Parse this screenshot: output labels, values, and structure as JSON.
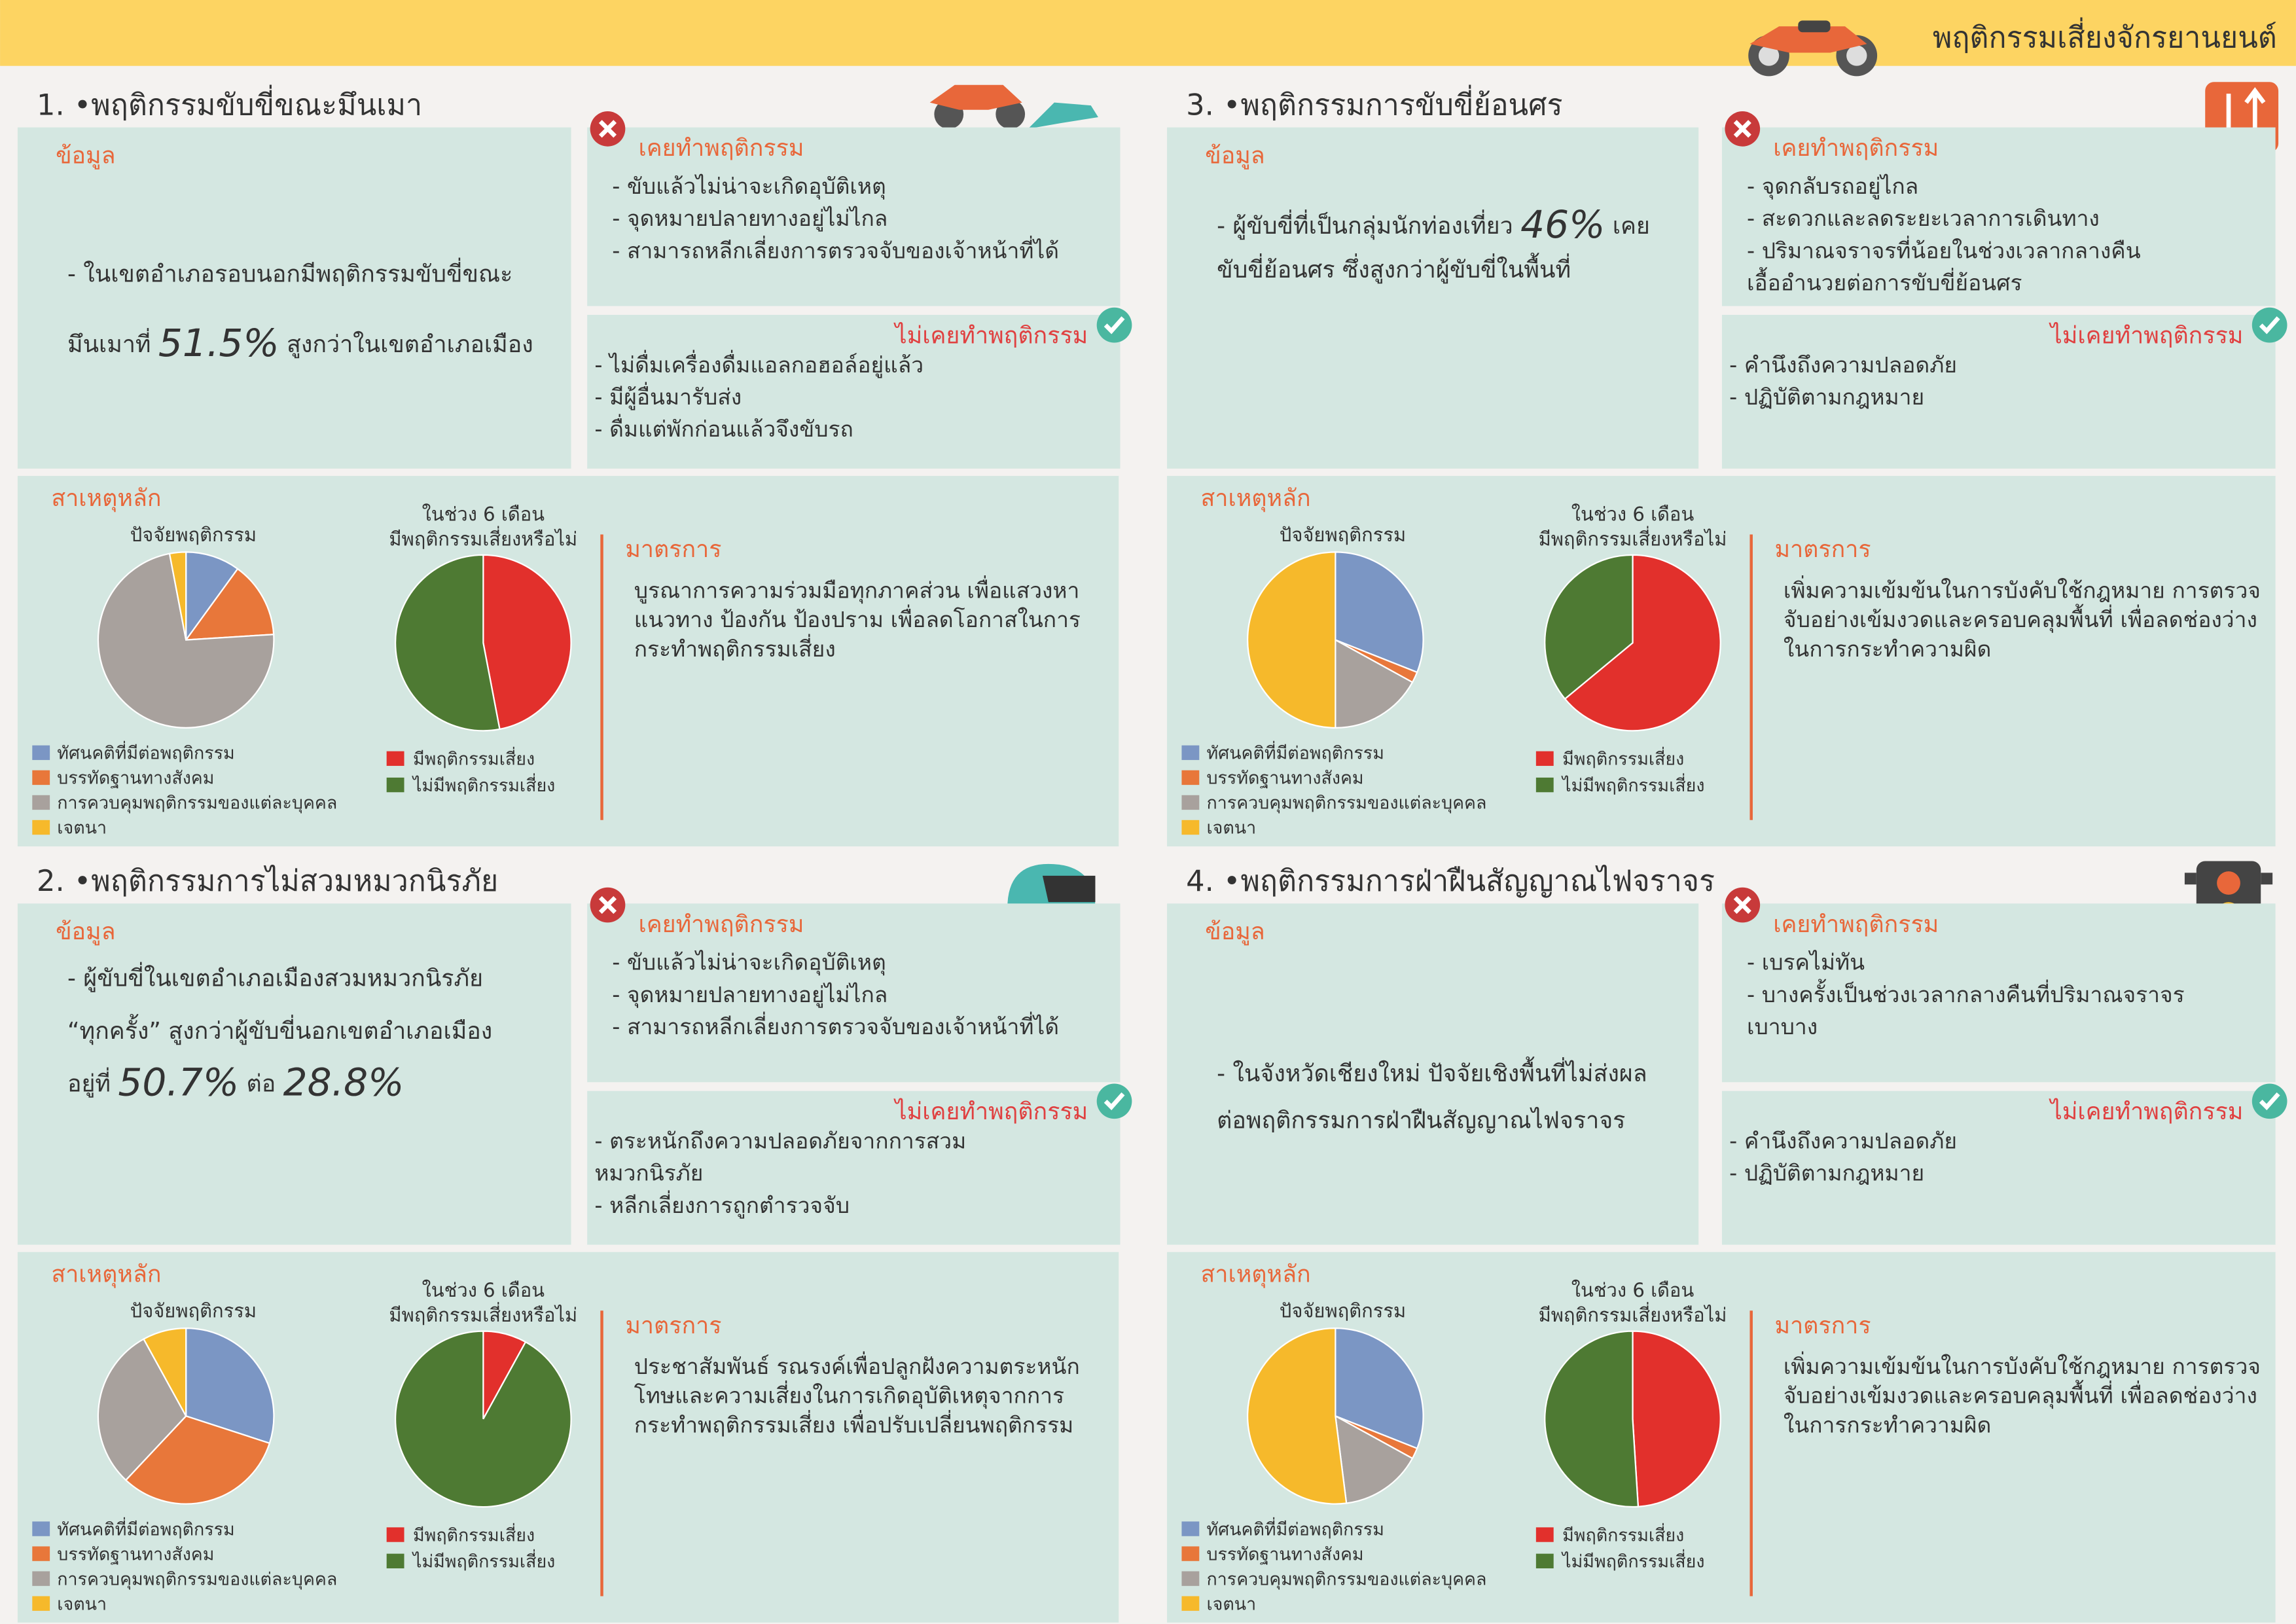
{
  "header": {
    "title": "พฤติกรรมเสี่ยงจักรยานยนต์"
  },
  "sections": [
    {
      "title": "1. •พฤติกรรมขับขี่ขณะมึนเมา",
      "info": {
        "label": "ข้อมูล",
        "lines": [
          [
            "- ในเขตอำเภอรอบนอกมีพฤติกรรมขับขี่ขณะ"
          ],
          [
            "มึนเมาที่ ",
            {
              "text": "51.5%",
              "emphasis": true
            },
            " สูงกว่าในเขตอำเภอเมือง"
          ]
        ]
      },
      "did": {
        "label": "เคยทำพฤติกรรม",
        "items": [
          "- ขับแล้วไม่น่าจะเกิดอุบัติเหตุ",
          "- จุดหมายปลายทางอยู่ไม่ไกล",
          "- สามารถหลีกเลี่ยงการตรวจจับของเจ้าหน้าที่ได้"
        ]
      },
      "not_did": {
        "label": "ไม่เคยทำพฤติกรรม",
        "items": [
          "- ไม่ดื่มเครื่องดื่มแอลกอฮอล์อยู่แล้ว",
          "- มีผู้อื่นมารับส่ง",
          "- ดื่มแต่พักก่อนแล้วจึงขับรถ"
        ]
      },
      "causes_label": "สาเหตุหลัก",
      "factor_chart": {
        "type": "pie",
        "title": "ปัจจัยพฤติกรรม",
        "categories": [
          "ทัศนคติที่มีต่อพฤติกรรม",
          "บรรทัดฐานทางสังคม",
          "การควบคุมพฤติกรรมของแต่ละบุคคล",
          "เจตนา"
        ],
        "values": [
          10,
          14,
          73,
          3
        ],
        "colors": [
          "#7b96c4",
          "#e8773a",
          "#a8a19d",
          "#f6b92b"
        ]
      },
      "risk_chart": {
        "type": "pie",
        "title_lines": [
          "ในช่วง 6 เดือน",
          "มีพฤติกรรมเสี่ยงหรือไม่"
        ],
        "categories": [
          "มีพฤติกรรมเสี่ยง",
          "ไม่มีพฤติกรรมเสี่ยง"
        ],
        "values": [
          47,
          53
        ],
        "colors": [
          "#e2302c",
          "#4e7a33"
        ]
      },
      "measures": {
        "label": "มาตรการ",
        "lines": [
          "บูรณาการความร่วมมือทุกภาคส่วน เพื่อแสวงหา",
          "แนวทาง ป้องกัน ป้องปราม เพื่อลดโอกาสในการ",
          "กระทำพฤติกรรมเสี่ยง"
        ]
      }
    },
    {
      "title": "2. •พฤติกรรมการไม่สวมหมวกนิรภัย",
      "info": {
        "label": "ข้อมูล",
        "lines": [
          [
            "- ผู้ขับขี่ในเขตอำเภอเมืองสวมหมวกนิรภัย"
          ],
          [
            "“ทุกครั้ง”  สูงกว่าผู้ขับขี่นอกเขตอำเภอเมือง"
          ],
          [
            "อยู่ที่ ",
            {
              "text": "50.7%",
              "emphasis": true
            },
            " ต่อ ",
            {
              "text": "28.8%",
              "emphasis": true
            }
          ]
        ]
      },
      "did": {
        "label": "เคยทำพฤติกรรม",
        "items": [
          "- ขับแล้วไม่น่าจะเกิดอุบัติเหตุ",
          "- จุดหมายปลายทางอยู่ไม่ไกล",
          "- สามารถหลีกเลี่ยงการตรวจจับของเจ้าหน้าที่ได้"
        ]
      },
      "not_did": {
        "label": "ไม่เคยทำพฤติกรรม",
        "items": [
          "- ตระหนักถึงความปลอดภัยจากการสวม",
          "  หมวกนิรภัย",
          "- หลีกเลี่ยงการถูกตำรวจจับ"
        ]
      },
      "causes_label": "สาเหตุหลัก",
      "factor_chart": {
        "type": "pie",
        "title": "ปัจจัยพฤติกรรม",
        "categories": [
          "ทัศนคติที่มีต่อพฤติกรรม",
          "บรรทัดฐานทางสังคม",
          "การควบคุมพฤติกรรมของแต่ละบุคคล",
          "เจตนา"
        ],
        "values": [
          30,
          32,
          30,
          8
        ],
        "colors": [
          "#7b96c4",
          "#e8773a",
          "#a8a19d",
          "#f6b92b"
        ]
      },
      "risk_chart": {
        "type": "pie",
        "title_lines": [
          "ในช่วง 6 เดือน",
          "มีพฤติกรรมเสี่ยงหรือไม่"
        ],
        "categories": [
          "มีพฤติกรรมเสี่ยง",
          "ไม่มีพฤติกรรมเสี่ยง"
        ],
        "values": [
          8,
          92
        ],
        "colors": [
          "#e2302c",
          "#4e7a33"
        ]
      },
      "measures": {
        "label": "มาตรการ",
        "lines": [
          "ประชาสัมพันธ์ รณรงค์เพื่อปลูกฝังความตระหนัก",
          "โทษและความเสี่ยงในการเกิดอุบัติเหตุจากการ",
          "กระทำพฤติกรรมเสี่ยง เพื่อปรับเปลี่ยนพฤติกรรม"
        ]
      }
    },
    {
      "title": "3. •พฤติกรรมการขับขี่ย้อนศร",
      "info": {
        "label": "ข้อมูล",
        "lines": [
          [
            "- ผู้ขับขี่ที่เป็นกลุ่มนักท่องเที่ยว ",
            {
              "text": "46%",
              "emphasis": true
            },
            " เคย"
          ],
          [
            "ขับขี่ย้อนศร ซึ่งสูงกว่าผู้ขับขี่ในพื้นที่"
          ]
        ]
      },
      "did": {
        "label": "เคยทำพฤติกรรม",
        "items": [
          "- จุดกลับรถอยู่ไกล",
          "- สะดวกและลดระยะเวลาการเดินทาง",
          "- ปริมาณจราจรที่น้อยในช่วงเวลากลางคืน",
          "เอื้ออำนวยต่อการขับขี่ย้อนศร"
        ]
      },
      "not_did": {
        "label": "ไม่เคยทำพฤติกรรม",
        "items": [
          "- คำนึงถึงความปลอดภัย",
          "- ปฏิบัติตามกฎหมาย"
        ]
      },
      "causes_label": "สาเหตุหลัก",
      "factor_chart": {
        "type": "pie",
        "title": "ปัจจัยพฤติกรรม",
        "categories": [
          "ทัศนคติที่มีต่อพฤติกรรม",
          "บรรทัดฐานทางสังคม",
          "การควบคุมพฤติกรรมของแต่ละบุคคล",
          "เจตนา"
        ],
        "values": [
          31,
          2,
          17,
          50
        ],
        "colors": [
          "#7b96c4",
          "#e8773a",
          "#a8a19d",
          "#f6b92b"
        ]
      },
      "risk_chart": {
        "type": "pie",
        "title_lines": [
          "ในช่วง 6 เดือน",
          "มีพฤติกรรมเสี่ยงหรือไม่"
        ],
        "categories": [
          "มีพฤติกรรมเสี่ยง",
          "ไม่มีพฤติกรรมเสี่ยง"
        ],
        "values": [
          64,
          36
        ],
        "colors": [
          "#e2302c",
          "#4e7a33"
        ]
      },
      "measures": {
        "label": "มาตรการ",
        "lines": [
          "เพิ่มความเข้มข้นในการบังคับใช้กฎหมาย การตรวจ",
          "จับอย่างเข้มงวดและครอบคลุมพื้นที่ เพื่อลดช่องว่าง",
          "ในการกระทำความผิด"
        ]
      }
    },
    {
      "title": "4. •พฤติกรรมการฝ่าฝืนสัญญาณไฟจราจร",
      "info": {
        "label": "ข้อมูล",
        "lines": [
          [
            "- ในจังหวัดเชียงใหม่ ปัจจัยเชิงพื้นที่ไม่ส่งผล"
          ],
          [
            "ต่อพฤติกรรมการฝ่าฝืนสัญญาณไฟจราจร"
          ]
        ]
      },
      "did": {
        "label": "เคยทำพฤติกรรม",
        "items": [
          "- เบรคไม่ทัน",
          "- บางครั้งเป็นช่วงเวลากลางคืนที่ปริมาณจราจร",
          "  เบาบาง"
        ]
      },
      "not_did": {
        "label": "ไม่เคยทำพฤติกรรม",
        "items": [
          "- คำนึงถึงความปลอดภัย",
          "- ปฏิบัติตามกฎหมาย"
        ]
      },
      "causes_label": "สาเหตุหลัก",
      "factor_chart": {
        "type": "pie",
        "title": "ปัจจัยพฤติกรรม",
        "categories": [
          "ทัศนคติที่มีต่อพฤติกรรม",
          "บรรทัดฐานทางสังคม",
          "การควบคุมพฤติกรรมของแต่ละบุคคล",
          "เจตนา"
        ],
        "values": [
          31,
          2,
          15,
          52
        ],
        "colors": [
          "#7b96c4",
          "#e8773a",
          "#a8a19d",
          "#f6b92b"
        ]
      },
      "risk_chart": {
        "type": "pie",
        "title_lines": [
          "ในช่วง 6 เดือน",
          "มีพฤติกรรมเสี่ยงหรือไม่"
        ],
        "categories": [
          "มีพฤติกรรมเสี่ยง",
          "ไม่มีพฤติกรรมเสี่ยง"
        ],
        "values": [
          49,
          51
        ],
        "colors": [
          "#e2302c",
          "#4e7a33"
        ]
      },
      "measures": {
        "label": "มาตรการ",
        "lines": [
          "เพิ่มความเข้มข้นในการบังคับใช้กฎหมาย การตรวจ",
          "จับอย่างเข้มงวดและครอบคลุมพื้นที่ เพื่อลดช่องว่าง",
          "ในการกระทำความผิด"
        ]
      }
    }
  ]
}
